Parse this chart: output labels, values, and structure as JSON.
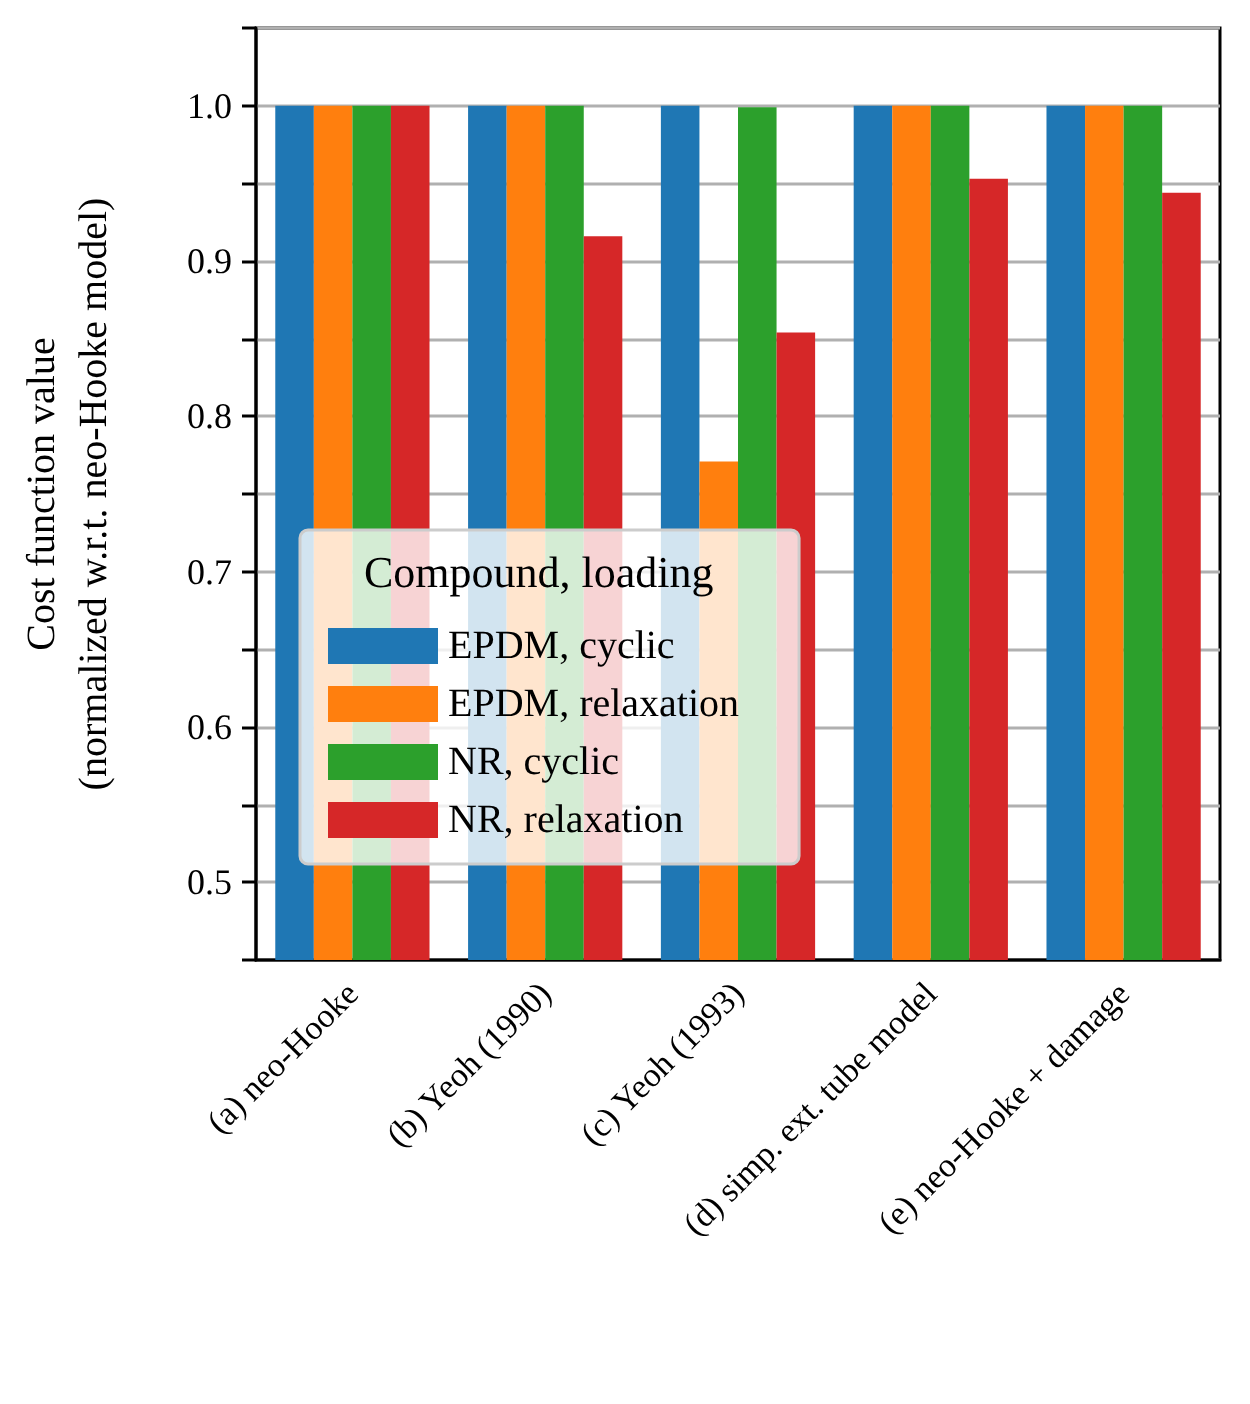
{
  "chart_data": {
    "type": "bar",
    "ylabel": "Cost function value\n(normalized w.r.t. neo-Hooke model)",
    "legend_title": "Compound, loading",
    "categories": [
      "(a) neo-Hooke",
      "(b) Yeoh (1990)",
      "(c) Yeoh (1993)",
      "(d) simp. ext. tube model",
      "(e) neo-Hooke + damage"
    ],
    "series": [
      {
        "name": "EPDM, cyclic",
        "color": "#1f77b4",
        "values": [
          1.0,
          1.0,
          1.0,
          1.0,
          1.0
        ]
      },
      {
        "name": "EPDM, relaxation",
        "color": "#ff7f0e",
        "values": [
          1.0,
          1.0,
          0.771,
          1.0,
          1.0
        ]
      },
      {
        "name": "NR, cyclic",
        "color": "#2ca02c",
        "values": [
          1.0,
          1.0,
          0.999,
          1.0,
          1.0
        ]
      },
      {
        "name": "NR, relaxation",
        "color": "#d62728",
        "values": [
          1.0,
          0.916,
          0.854,
          0.953,
          0.944
        ]
      }
    ],
    "ylim": [
      0.45,
      1.05
    ],
    "yticks": [
      {
        "value": 0.45,
        "label": null
      },
      0.5,
      {
        "value": 0.55,
        "label": null
      },
      0.6,
      {
        "value": 0.65,
        "label": null
      },
      0.7,
      {
        "value": 0.75,
        "label": null
      },
      0.8,
      {
        "value": 0.85,
        "label": null
      },
      0.9,
      {
        "value": 0.95,
        "label": null
      },
      {
        "value": 1.0,
        "label": "1.0"
      },
      {
        "value": 1.05,
        "label": null
      }
    ],
    "grid": "y",
    "legend": "bottom left"
  }
}
